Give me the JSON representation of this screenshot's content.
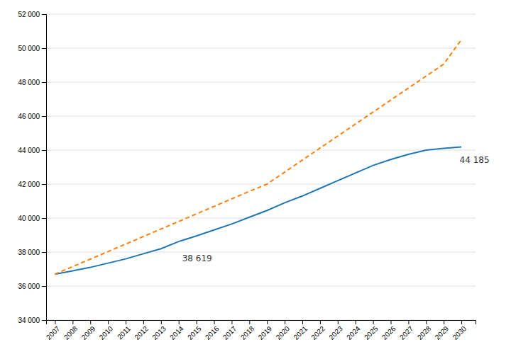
{
  "chart_data": {
    "type": "line",
    "x": [
      2007,
      2008,
      2009,
      2010,
      2011,
      2012,
      2013,
      2014,
      2015,
      2016,
      2017,
      2018,
      2019,
      2020,
      2021,
      2022,
      2023,
      2024,
      2025,
      2026,
      2027,
      2028,
      2029,
      2030
    ],
    "series": [
      {
        "line_style": "solid",
        "values": [
          36700,
          36900,
          37100,
          37350,
          37600,
          37900,
          38200,
          38619,
          38950,
          39300,
          39650,
          40050,
          40450,
          40900,
          41300,
          41750,
          42200,
          42650,
          43100,
          43450,
          43750,
          44000,
          44100,
          44185
        ]
      },
      {
        "line_style": "dashed",
        "values": [
          36700,
          37143,
          37586,
          38029,
          38472,
          38915,
          39358,
          39801,
          40244,
          40687,
          41130,
          41573,
          42000,
          42706,
          43412,
          44118,
          44824,
          45530,
          46236,
          46942,
          47648,
          48354,
          49060,
          50500
        ]
      }
    ],
    "xlim": [
      2006.5,
      2030.8
    ],
    "xticks": [
      2007,
      2008,
      2009,
      2010,
      2011,
      2012,
      2013,
      2014,
      2015,
      2016,
      2017,
      2018,
      2019,
      2020,
      2021,
      2022,
      2023,
      2024,
      2025,
      2026,
      2027,
      2028,
      2029,
      2030
    ],
    "ylim": [
      34000,
      52000
    ],
    "yticks": [
      {
        "value": 34000,
        "label": "34 000"
      },
      {
        "value": 36000,
        "label": "36 000"
      },
      {
        "value": 38000,
        "label": "38 000"
      },
      {
        "value": 40000,
        "label": "40 000"
      },
      {
        "value": 42000,
        "label": "42 000"
      },
      {
        "value": 44000,
        "label": "44 000"
      },
      {
        "value": 46000,
        "label": "46 000"
      },
      {
        "value": 48000,
        "label": "48 000"
      },
      {
        "value": 50000,
        "label": "50 000"
      },
      {
        "value": 52000,
        "label": "52 000"
      }
    ],
    "grid": true,
    "annotations": [
      {
        "text": "38 619",
        "x": 2014.2,
        "y": 37900
      },
      {
        "text": "44 185",
        "x": 2029.9,
        "y": 43700
      }
    ]
  }
}
